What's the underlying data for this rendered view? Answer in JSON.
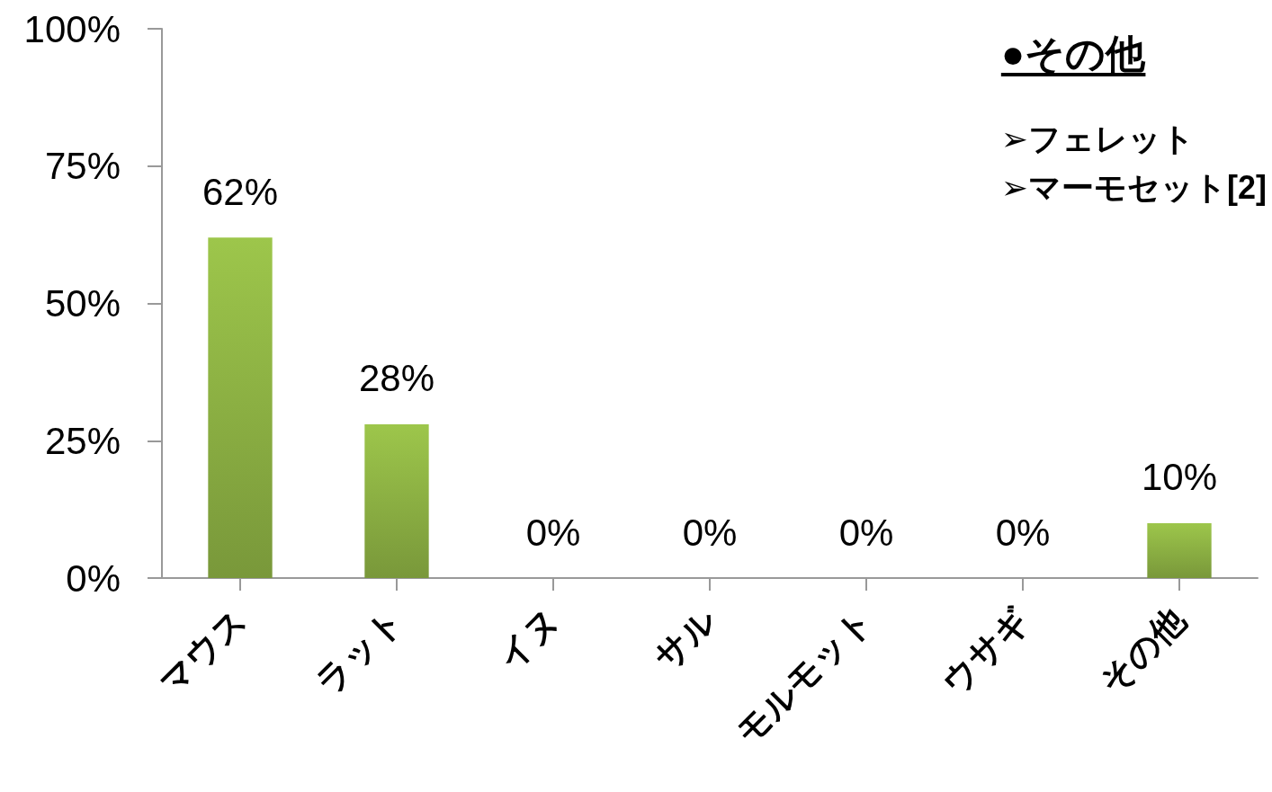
{
  "chart_data": {
    "type": "bar",
    "categories": [
      "マウス",
      "ラット",
      "イヌ",
      "サル",
      "モルモット",
      "ウサギ",
      "その他"
    ],
    "values": [
      62,
      28,
      0,
      0,
      0,
      0,
      10
    ],
    "color": "#9dc64b",
    "value_labels": [
      "62%",
      "28%",
      "0%",
      "0%",
      "0%",
      "0%",
      "10%"
    ],
    "ylim": [
      0,
      100
    ],
    "yticks": [
      {
        "value": 0,
        "label": "0%"
      },
      {
        "value": 25,
        "label": "25%"
      },
      {
        "value": 50,
        "label": "50%"
      },
      {
        "value": 75,
        "label": "75%"
      },
      {
        "value": 100,
        "label": "100%"
      }
    ],
    "annotations": [
      "●その他",
      "➢フェレット",
      "➢マーモセット[2]"
    ]
  }
}
